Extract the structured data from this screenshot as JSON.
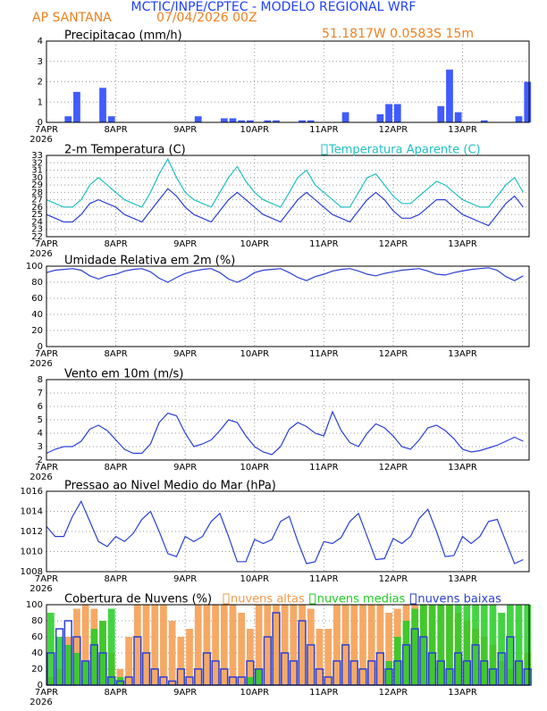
{
  "header": {
    "title": "MCTIC/INPE/CPTEC - MODELO REGIONAL WRF",
    "location": "AP SANTANA",
    "date": "07/04/2026 00Z",
    "coords": "51.1817W 0.0583S 15m"
  },
  "chart_data": [
    {
      "type": "bar",
      "title": "Precipitacao (mm/h)",
      "year_label": "2026",
      "x": [
        7,
        7.125,
        7.25,
        7.375,
        7.5,
        7.625,
        7.75,
        7.875,
        8,
        8.125,
        8.25,
        8.375,
        8.5,
        8.625,
        8.75,
        8.875,
        9,
        9.125,
        9.25,
        9.375,
        9.5,
        9.625,
        9.75,
        9.875,
        10,
        10.125,
        10.25,
        10.375,
        10.5,
        10.625,
        10.75,
        10.875,
        11,
        11.125,
        11.25,
        11.375,
        11.5,
        11.625,
        11.75,
        11.875,
        12,
        12.125,
        12.25,
        12.375,
        12.5,
        12.625,
        12.75,
        12.875,
        13,
        13.125,
        13.25,
        13.375,
        13.5,
        13.625,
        13.75,
        13.875
      ],
      "series": [
        {
          "color": "#1f3fff",
          "values": [
            0,
            0,
            0.3,
            1.5,
            0,
            0,
            1.7,
            0.3,
            0,
            0,
            0,
            0,
            0,
            0,
            0,
            0,
            0,
            0.3,
            0,
            0,
            0.2,
            0.2,
            0.1,
            0.1,
            0,
            0.1,
            0.1,
            0,
            0,
            0.1,
            0.1,
            0,
            0,
            0,
            0.5,
            0,
            0,
            0,
            0.4,
            0.9,
            0.9,
            0,
            0,
            0,
            0,
            0.8,
            2.6,
            0.5,
            0,
            0,
            0.1,
            0,
            0,
            0,
            0.3,
            2
          ]
        }
      ],
      "xlim": [
        7,
        13.96
      ],
      "ylim": [
        0,
        4
      ],
      "yticks": [
        0,
        1,
        2,
        3,
        4
      ],
      "xticks": [
        {
          "value": 7,
          "label": "7APR"
        },
        {
          "value": 8,
          "label": "8APR"
        },
        {
          "value": 9,
          "label": "9APR"
        },
        {
          "value": 10,
          "label": "10APR"
        },
        {
          "value": 11,
          "label": "11APR"
        },
        {
          "value": 12,
          "label": "12APR"
        },
        {
          "value": 13,
          "label": "13APR"
        }
      ],
      "grid": true
    },
    {
      "type": "line",
      "title": "2-m Temperatura (C)",
      "year_label": "2026",
      "x": [
        7,
        7.125,
        7.25,
        7.375,
        7.5,
        7.625,
        7.75,
        7.875,
        8,
        8.125,
        8.25,
        8.375,
        8.5,
        8.625,
        8.75,
        8.875,
        9,
        9.125,
        9.25,
        9.375,
        9.5,
        9.625,
        9.75,
        9.875,
        10,
        10.125,
        10.25,
        10.375,
        10.5,
        10.625,
        10.75,
        10.875,
        11,
        11.125,
        11.25,
        11.375,
        11.5,
        11.625,
        11.75,
        11.875,
        12,
        12.125,
        12.25,
        12.375,
        12.5,
        12.625,
        12.75,
        12.875,
        13,
        13.125,
        13.25,
        13.375,
        13.5,
        13.625,
        13.75,
        13.875
      ],
      "series": [
        {
          "color": "#2b3fd6",
          "values": [
            25,
            24.5,
            24,
            24,
            25,
            26.5,
            27,
            26.5,
            26,
            25,
            24.5,
            24,
            25.5,
            27,
            28.5,
            27.5,
            26,
            25,
            24.5,
            24,
            25.5,
            27,
            28,
            27,
            26,
            25,
            24.5,
            24,
            25.5,
            27,
            28,
            27,
            26,
            25,
            24.5,
            24,
            25.5,
            27,
            28,
            27,
            25.5,
            24.5,
            24.5,
            25,
            26,
            27,
            27,
            26,
            25,
            24.5,
            24,
            23.5,
            25,
            26.5,
            27.5,
            26
          ]
        },
        {
          "name": "Temperatura Aparente (C)",
          "color": "#20c0c0",
          "values": [
            27,
            26.5,
            26,
            26,
            27,
            29,
            30,
            29,
            28,
            27,
            26.5,
            26,
            28,
            30.5,
            32.5,
            30,
            28,
            27,
            26.5,
            26,
            28,
            30,
            31.5,
            29.5,
            28,
            27,
            26.5,
            26,
            28,
            30,
            31,
            29,
            28,
            27,
            26,
            26,
            28,
            30,
            30.5,
            29,
            27.5,
            26.5,
            26.5,
            27.5,
            28.5,
            29.5,
            29,
            28,
            27,
            26.5,
            26,
            26,
            27.5,
            29,
            30,
            28
          ]
        }
      ],
      "xlim": [
        7,
        13.96
      ],
      "ylim": [
        22,
        33
      ],
      "yticks": [
        22,
        23,
        24,
        25,
        26,
        27,
        28,
        29,
        30,
        31,
        32,
        33
      ],
      "xticks": [
        {
          "value": 7,
          "label": "7APR"
        },
        {
          "value": 8,
          "label": "8APR"
        },
        {
          "value": 9,
          "label": "9APR"
        },
        {
          "value": 10,
          "label": "10APR"
        },
        {
          "value": 11,
          "label": "11APR"
        },
        {
          "value": 12,
          "label": "12APR"
        },
        {
          "value": 13,
          "label": "13APR"
        }
      ],
      "grid": true
    },
    {
      "type": "line",
      "title": "Umidade Relativa em 2m (%)",
      "year_label": "2026",
      "x": [
        7,
        7.125,
        7.25,
        7.375,
        7.5,
        7.625,
        7.75,
        7.875,
        8,
        8.125,
        8.25,
        8.375,
        8.5,
        8.625,
        8.75,
        8.875,
        9,
        9.125,
        9.25,
        9.375,
        9.5,
        9.625,
        9.75,
        9.875,
        10,
        10.125,
        10.25,
        10.375,
        10.5,
        10.625,
        10.75,
        10.875,
        11,
        11.125,
        11.25,
        11.375,
        11.5,
        11.625,
        11.75,
        11.875,
        12,
        12.125,
        12.25,
        12.375,
        12.5,
        12.625,
        12.75,
        12.875,
        13,
        13.125,
        13.25,
        13.375,
        13.5,
        13.625,
        13.75,
        13.875
      ],
      "series": [
        {
          "color": "#2b3fd6",
          "values": [
            92,
            95,
            96,
            97,
            95,
            88,
            84,
            88,
            90,
            94,
            96,
            97,
            93,
            85,
            80,
            86,
            91,
            94,
            96,
            97,
            92,
            84,
            80,
            85,
            92,
            95,
            96,
            97,
            92,
            86,
            82,
            87,
            90,
            94,
            96,
            97,
            94,
            90,
            88,
            91,
            93,
            95,
            96,
            97,
            94,
            90,
            89,
            92,
            94,
            96,
            97,
            98,
            95,
            87,
            82,
            88
          ]
        }
      ],
      "xlim": [
        7,
        13.96
      ],
      "ylim": [
        0,
        100
      ],
      "yticks": [
        0,
        20,
        40,
        60,
        80,
        100
      ],
      "xticks": [
        {
          "value": 7,
          "label": "7APR"
        },
        {
          "value": 8,
          "label": "8APR"
        },
        {
          "value": 9,
          "label": "9APR"
        },
        {
          "value": 10,
          "label": "10APR"
        },
        {
          "value": 11,
          "label": "11APR"
        },
        {
          "value": 12,
          "label": "12APR"
        },
        {
          "value": 13,
          "label": "13APR"
        }
      ],
      "grid": true
    },
    {
      "type": "line",
      "title": "Vento em 10m (m/s)",
      "year_label": "2026",
      "x": [
        7,
        7.125,
        7.25,
        7.375,
        7.5,
        7.625,
        7.75,
        7.875,
        8,
        8.125,
        8.25,
        8.375,
        8.5,
        8.625,
        8.75,
        8.875,
        9,
        9.125,
        9.25,
        9.375,
        9.5,
        9.625,
        9.75,
        9.875,
        10,
        10.125,
        10.25,
        10.375,
        10.5,
        10.625,
        10.75,
        10.875,
        11,
        11.125,
        11.25,
        11.375,
        11.5,
        11.625,
        11.75,
        11.875,
        12,
        12.125,
        12.25,
        12.375,
        12.5,
        12.625,
        12.75,
        12.875,
        13,
        13.125,
        13.25,
        13.375,
        13.5,
        13.625,
        13.75,
        13.875
      ],
      "series": [
        {
          "color": "#2b3fd6",
          "values": [
            2.5,
            2.8,
            3,
            3,
            3.4,
            4.3,
            4.6,
            4.2,
            3.5,
            2.8,
            2.5,
            2.5,
            3.2,
            4.8,
            5.5,
            5.3,
            4,
            3,
            3.2,
            3.5,
            4.2,
            5,
            4.8,
            3.8,
            3,
            2.6,
            2.4,
            3,
            4.3,
            4.8,
            4.5,
            4,
            3.8,
            5.6,
            4.2,
            3.3,
            3,
            4,
            4.7,
            4.4,
            3.8,
            3,
            2.8,
            3.5,
            4.4,
            4.6,
            4.2,
            3.6,
            2.8,
            2.6,
            2.7,
            2.9,
            3.1,
            3.4,
            3.7,
            3.4
          ]
        }
      ],
      "xlim": [
        7,
        13.96
      ],
      "ylim": [
        2,
        8
      ],
      "yticks": [
        2,
        3,
        4,
        5,
        6,
        7,
        8
      ],
      "xticks": [
        {
          "value": 7,
          "label": "7APR"
        },
        {
          "value": 8,
          "label": "8APR"
        },
        {
          "value": 9,
          "label": "9APR"
        },
        {
          "value": 10,
          "label": "10APR"
        },
        {
          "value": 11,
          "label": "11APR"
        },
        {
          "value": 12,
          "label": "12APR"
        },
        {
          "value": 13,
          "label": "13APR"
        }
      ],
      "grid": true
    },
    {
      "type": "line",
      "title": "Pressao ao Nivel Medio do Mar (hPa)",
      "year_label": "2026",
      "x": [
        7,
        7.125,
        7.25,
        7.375,
        7.5,
        7.625,
        7.75,
        7.875,
        8,
        8.125,
        8.25,
        8.375,
        8.5,
        8.625,
        8.75,
        8.875,
        9,
        9.125,
        9.25,
        9.375,
        9.5,
        9.625,
        9.75,
        9.875,
        10,
        10.125,
        10.25,
        10.375,
        10.5,
        10.625,
        10.75,
        10.875,
        11,
        11.125,
        11.25,
        11.375,
        11.5,
        11.625,
        11.75,
        11.875,
        12,
        12.125,
        12.25,
        12.375,
        12.5,
        12.625,
        12.75,
        12.875,
        13,
        13.125,
        13.25,
        13.375,
        13.5,
        13.625,
        13.75,
        13.875
      ],
      "series": [
        {
          "color": "#2b3fd6",
          "values": [
            1012.5,
            1011.5,
            1011.5,
            1013.5,
            1015,
            1013,
            1011,
            1010.5,
            1011.5,
            1011,
            1011.8,
            1013.2,
            1014,
            1012,
            1009.8,
            1009.5,
            1011.5,
            1011,
            1011.5,
            1013,
            1013.8,
            1011.5,
            1009,
            1009,
            1011.2,
            1010.8,
            1011.2,
            1013,
            1013.5,
            1011,
            1008.8,
            1009,
            1011,
            1010.8,
            1011.4,
            1013,
            1013.8,
            1011.5,
            1009.2,
            1009.3,
            1011.3,
            1010.8,
            1011.5,
            1013.3,
            1014.2,
            1012,
            1009.5,
            1009.6,
            1011.5,
            1010.8,
            1011.5,
            1013,
            1013.2,
            1011,
            1008.8,
            1009.2
          ]
        }
      ],
      "xlim": [
        7,
        13.96
      ],
      "ylim": [
        1008,
        1016
      ],
      "yticks": [
        1008,
        1010,
        1012,
        1014,
        1016
      ],
      "xticks": [
        {
          "value": 7,
          "label": "7APR"
        },
        {
          "value": 8,
          "label": "8APR"
        },
        {
          "value": 9,
          "label": "9APR"
        },
        {
          "value": 10,
          "label": "10APR"
        },
        {
          "value": 11,
          "label": "11APR"
        },
        {
          "value": 12,
          "label": "12APR"
        },
        {
          "value": 13,
          "label": "13APR"
        }
      ],
      "grid": true
    },
    {
      "type": "bar",
      "title": "Cobertura de Nuvens (%)",
      "year_label": "2026",
      "x": [
        7,
        7.125,
        7.25,
        7.375,
        7.5,
        7.625,
        7.75,
        7.875,
        8,
        8.125,
        8.25,
        8.375,
        8.5,
        8.625,
        8.75,
        8.875,
        9,
        9.125,
        9.25,
        9.375,
        9.5,
        9.625,
        9.75,
        9.875,
        10,
        10.125,
        10.25,
        10.375,
        10.5,
        10.625,
        10.75,
        10.875,
        11,
        11.125,
        11.25,
        11.375,
        11.5,
        11.625,
        11.75,
        11.875,
        12,
        12.125,
        12.25,
        12.375,
        12.5,
        12.625,
        12.75,
        12.875,
        13,
        13.125,
        13.25,
        13.375,
        13.5,
        13.625,
        13.75,
        13.875
      ],
      "series": [
        {
          "name": "nuvens altas",
          "color": "#f59a4a",
          "style": "fill",
          "values": [
            10,
            20,
            60,
            95,
            100,
            95,
            80,
            40,
            20,
            60,
            100,
            100,
            100,
            100,
            80,
            60,
            70,
            100,
            100,
            100,
            100,
            100,
            90,
            70,
            100,
            100,
            100,
            100,
            100,
            100,
            95,
            70,
            70,
            100,
            100,
            100,
            100,
            100,
            100,
            90,
            95,
            100,
            100,
            100,
            100,
            100,
            100,
            90,
            80,
            70,
            60,
            50,
            30,
            20,
            30,
            40
          ]
        },
        {
          "name": "nuvens medias",
          "color": "#22cc22",
          "style": "fill",
          "values": [
            90,
            60,
            50,
            40,
            30,
            70,
            80,
            95,
            10,
            0,
            0,
            0,
            0,
            0,
            0,
            0,
            0,
            0,
            0,
            0,
            0,
            0,
            0,
            10,
            20,
            0,
            0,
            0,
            0,
            0,
            0,
            0,
            0,
            0,
            0,
            0,
            0,
            0,
            0,
            30,
            60,
            80,
            95,
            100,
            100,
            100,
            100,
            100,
            100,
            100,
            100,
            100,
            90,
            100,
            100,
            100
          ]
        },
        {
          "name": "nuvens baixas",
          "color": "#2b3fd6",
          "style": "outline",
          "values": [
            40,
            70,
            80,
            60,
            30,
            50,
            40,
            10,
            5,
            10,
            60,
            40,
            20,
            10,
            5,
            20,
            10,
            20,
            40,
            30,
            20,
            10,
            10,
            30,
            20,
            60,
            90,
            40,
            30,
            80,
            50,
            20,
            10,
            30,
            50,
            30,
            20,
            30,
            40,
            20,
            30,
            50,
            70,
            60,
            40,
            30,
            20,
            40,
            30,
            50,
            30,
            20,
            40,
            60,
            30,
            20
          ]
        }
      ],
      "xlim": [
        7,
        13.96
      ],
      "ylim": [
        0,
        100
      ],
      "yticks": [
        0,
        20,
        40,
        60,
        80,
        100
      ],
      "xticks": [
        {
          "value": 7,
          "label": "7APR"
        },
        {
          "value": 8,
          "label": "8APR"
        },
        {
          "value": 9,
          "label": "9APR"
        },
        {
          "value": 10,
          "label": "10APR"
        },
        {
          "value": 11,
          "label": "11APR"
        },
        {
          "value": 12,
          "label": "12APR"
        },
        {
          "value": 13,
          "label": "13APR"
        }
      ],
      "grid": true
    }
  ]
}
